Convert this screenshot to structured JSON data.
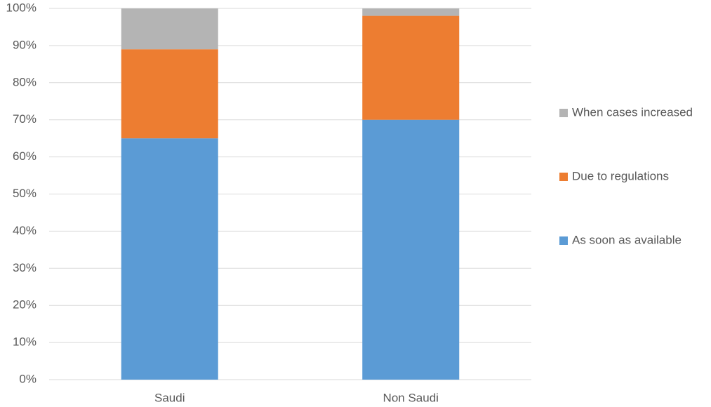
{
  "chart_data": {
    "type": "stacked_bar",
    "categories": [
      "Saudi",
      "Non Saudi"
    ],
    "series": [
      {
        "name": "As soon as available",
        "color": "#5b9bd5",
        "values": [
          65,
          70
        ]
      },
      {
        "name": "Due to regulations",
        "color": "#ed7d31",
        "values": [
          24,
          28
        ]
      },
      {
        "name": "When cases increased",
        "color": "#b4b4b4",
        "values": [
          11,
          2
        ]
      }
    ],
    "ylim": [
      0,
      100
    ],
    "yticks": [
      {
        "value": 0,
        "label": "0%"
      },
      {
        "value": 10,
        "label": "10%"
      },
      {
        "value": 20,
        "label": "20%"
      },
      {
        "value": 30,
        "label": "30%"
      },
      {
        "value": 40,
        "label": "40%"
      },
      {
        "value": 50,
        "label": "50%"
      },
      {
        "value": 60,
        "label": "60%"
      },
      {
        "value": 70,
        "label": "70%"
      },
      {
        "value": 80,
        "label": "80%"
      },
      {
        "value": 90,
        "label": "90%"
      },
      {
        "value": 100,
        "label": "100%"
      }
    ],
    "grid": true,
    "legend": "right"
  }
}
